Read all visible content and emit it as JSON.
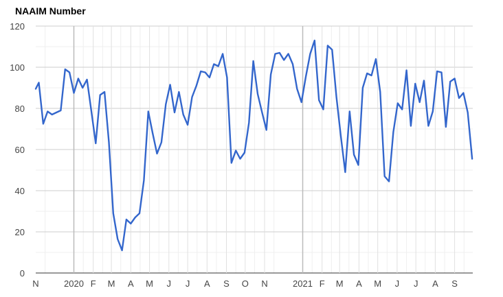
{
  "chart_data": {
    "type": "line",
    "title": "NAAIM Number",
    "xlabel": "",
    "ylabel": "",
    "ylim": [
      0,
      120
    ],
    "yticks": [
      0,
      20,
      40,
      60,
      80,
      100,
      120
    ],
    "xlim": [
      "2019-11-01",
      "2021-09-30"
    ],
    "xtick_labels": [
      {
        "date": "2019-11-01",
        "label": "N"
      },
      {
        "date": "2020-01-01",
        "label": "2020",
        "major": true
      },
      {
        "date": "2020-02-01",
        "label": "F"
      },
      {
        "date": "2020-03-01",
        "label": "M"
      },
      {
        "date": "2020-04-01",
        "label": "A"
      },
      {
        "date": "2020-05-01",
        "label": "M"
      },
      {
        "date": "2020-06-01",
        "label": "J"
      },
      {
        "date": "2020-07-01",
        "label": "J"
      },
      {
        "date": "2020-08-01",
        "label": "A"
      },
      {
        "date": "2020-09-01",
        "label": "S"
      },
      {
        "date": "2020-10-01",
        "label": "O"
      },
      {
        "date": "2020-11-01",
        "label": "N"
      },
      {
        "date": "2021-01-01",
        "label": "2021",
        "major": true
      },
      {
        "date": "2021-02-01",
        "label": "F"
      },
      {
        "date": "2021-03-01",
        "label": "M"
      },
      {
        "date": "2021-04-01",
        "label": "A"
      },
      {
        "date": "2021-05-01",
        "label": "M"
      },
      {
        "date": "2021-06-01",
        "label": "J"
      },
      {
        "date": "2021-07-01",
        "label": "J"
      },
      {
        "date": "2021-08-01",
        "label": "A"
      },
      {
        "date": "2021-09-01",
        "label": "S"
      }
    ],
    "grid": true,
    "series": [
      {
        "color": "#3366cc",
        "points": [
          [
            "2019-11-01",
            89.5
          ],
          [
            "2019-11-06",
            92.5
          ],
          [
            "2019-11-13",
            72.5
          ],
          [
            "2019-11-20",
            78.5
          ],
          [
            "2019-11-27",
            77
          ],
          [
            "2019-12-04",
            78
          ],
          [
            "2019-12-11",
            79
          ],
          [
            "2019-12-18",
            99
          ],
          [
            "2019-12-25",
            97.5
          ],
          [
            "2020-01-01",
            87.5
          ],
          [
            "2020-01-08",
            94.5
          ],
          [
            "2020-01-15",
            90
          ],
          [
            "2020-01-22",
            94
          ],
          [
            "2020-01-29",
            78.5
          ],
          [
            "2020-02-05",
            63
          ],
          [
            "2020-02-12",
            86.5
          ],
          [
            "2020-02-19",
            88
          ],
          [
            "2020-02-26",
            63.5
          ],
          [
            "2020-03-04",
            29
          ],
          [
            "2020-03-11",
            16.5
          ],
          [
            "2020-03-18",
            11
          ],
          [
            "2020-03-25",
            26
          ],
          [
            "2020-04-01",
            24
          ],
          [
            "2020-04-08",
            27
          ],
          [
            "2020-04-15",
            29
          ],
          [
            "2020-04-22",
            45
          ],
          [
            "2020-04-29",
            78.5
          ],
          [
            "2020-05-06",
            68
          ],
          [
            "2020-05-13",
            58
          ],
          [
            "2020-05-20",
            63.5
          ],
          [
            "2020-05-27",
            82
          ],
          [
            "2020-06-03",
            91.5
          ],
          [
            "2020-06-10",
            78
          ],
          [
            "2020-06-17",
            88
          ],
          [
            "2020-06-24",
            77
          ],
          [
            "2020-07-01",
            72
          ],
          [
            "2020-07-08",
            85.5
          ],
          [
            "2020-07-15",
            91
          ],
          [
            "2020-07-22",
            98
          ],
          [
            "2020-07-29",
            97.5
          ],
          [
            "2020-08-05",
            95
          ],
          [
            "2020-08-12",
            101.5
          ],
          [
            "2020-08-19",
            100.5
          ],
          [
            "2020-08-26",
            106.5
          ],
          [
            "2020-09-02",
            95
          ],
          [
            "2020-09-09",
            53.5
          ],
          [
            "2020-09-16",
            59.5
          ],
          [
            "2020-09-23",
            55.5
          ],
          [
            "2020-09-30",
            58.5
          ],
          [
            "2020-10-07",
            73
          ],
          [
            "2020-10-14",
            103
          ],
          [
            "2020-10-21",
            87
          ],
          [
            "2020-10-28",
            78
          ],
          [
            "2020-11-04",
            69.5
          ],
          [
            "2020-11-11",
            96.5
          ],
          [
            "2020-11-18",
            106.5
          ],
          [
            "2020-11-25",
            107
          ],
          [
            "2020-12-02",
            103.5
          ],
          [
            "2020-12-09",
            106.5
          ],
          [
            "2020-12-16",
            101.5
          ],
          [
            "2020-12-23",
            89.5
          ],
          [
            "2020-12-30",
            83
          ],
          [
            "2021-01-06",
            95.5
          ],
          [
            "2021-01-13",
            106.5
          ],
          [
            "2021-01-20",
            113
          ],
          [
            "2021-01-27",
            84
          ],
          [
            "2021-02-03",
            79.5
          ],
          [
            "2021-02-10",
            110.5
          ],
          [
            "2021-02-17",
            108.5
          ],
          [
            "2021-02-24",
            85.5
          ],
          [
            "2021-03-03",
            66.5
          ],
          [
            "2021-03-10",
            49
          ],
          [
            "2021-03-17",
            78.5
          ],
          [
            "2021-03-24",
            57.5
          ],
          [
            "2021-03-31",
            52.5
          ],
          [
            "2021-04-07",
            90
          ],
          [
            "2021-04-14",
            97
          ],
          [
            "2021-04-21",
            96
          ],
          [
            "2021-04-28",
            104
          ],
          [
            "2021-05-05",
            88
          ],
          [
            "2021-05-12",
            47
          ],
          [
            "2021-05-19",
            44.5
          ],
          [
            "2021-05-26",
            68.5
          ],
          [
            "2021-06-02",
            82.5
          ],
          [
            "2021-06-09",
            79.5
          ],
          [
            "2021-06-16",
            98.5
          ],
          [
            "2021-06-23",
            71.5
          ],
          [
            "2021-06-30",
            92
          ],
          [
            "2021-07-07",
            83
          ],
          [
            "2021-07-14",
            93.5
          ],
          [
            "2021-07-21",
            71.5
          ],
          [
            "2021-07-28",
            78.5
          ],
          [
            "2021-08-04",
            98
          ],
          [
            "2021-08-11",
            97.5
          ],
          [
            "2021-08-18",
            71
          ],
          [
            "2021-08-25",
            93
          ],
          [
            "2021-09-01",
            94.5
          ],
          [
            "2021-09-08",
            85
          ],
          [
            "2021-09-15",
            87.5
          ],
          [
            "2021-09-22",
            78
          ],
          [
            "2021-09-29",
            55.5
          ]
        ]
      }
    ]
  }
}
